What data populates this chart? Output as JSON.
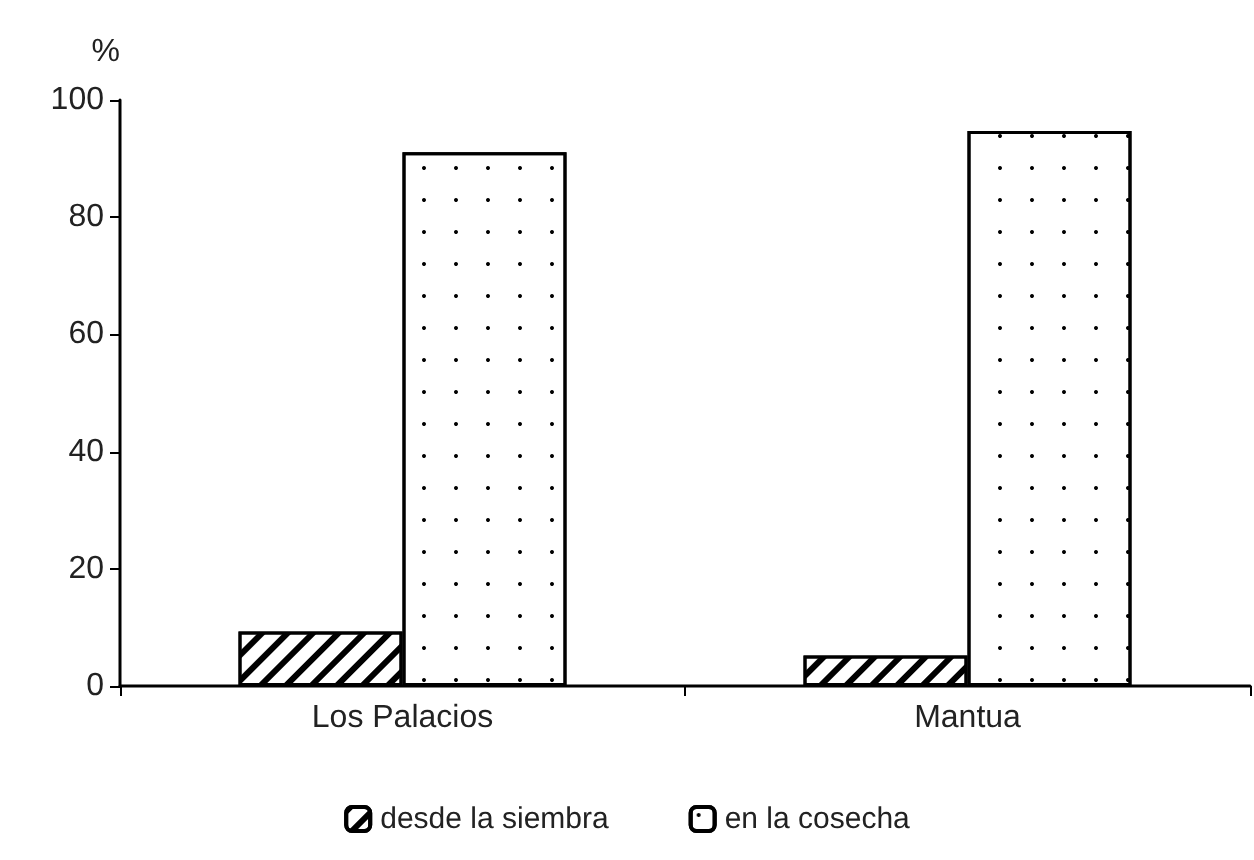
{
  "chart_data": {
    "type": "bar",
    "ylabel": "%",
    "categories": [
      "Los Palacios",
      "Mantua"
    ],
    "series": [
      {
        "name": "desde la siembra",
        "color": "#ffffff",
        "values": [
          9.3,
          5.2
        ]
      },
      {
        "name": "en la cosecha",
        "color": "#ffffff",
        "values": [
          91.1,
          94.7
        ]
      }
    ],
    "ylim": [
      0,
      100
    ],
    "yticks": [
      0,
      20,
      40,
      60,
      80,
      100
    ],
    "grid": false,
    "legend": "bottom"
  }
}
